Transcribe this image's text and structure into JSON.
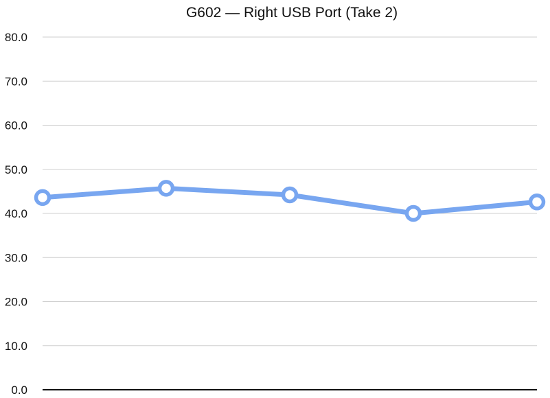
{
  "chart_data": {
    "type": "line",
    "title": "G602 — Right USB Port (Take 2)",
    "xlabel": "",
    "ylabel": "",
    "categories": [
      "",
      "",
      "",
      "",
      ""
    ],
    "series": [
      {
        "values": [
          43.6,
          45.7,
          44.2,
          40.0,
          42.6
        ],
        "color": "#78a6f0"
      }
    ],
    "ylim": [
      0,
      80
    ],
    "yticks": [
      "0.0",
      "10.0",
      "20.0",
      "30.0",
      "40.0",
      "50.0",
      "60.0",
      "70.0",
      "80.0"
    ],
    "grid": true,
    "legend": "none"
  }
}
